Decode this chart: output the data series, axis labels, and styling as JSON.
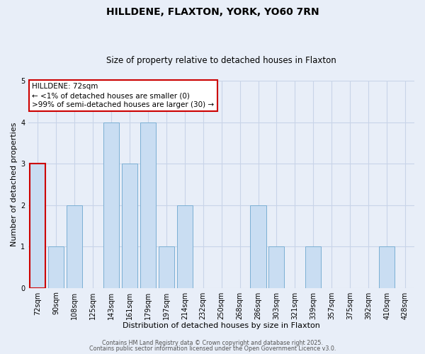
{
  "title": "HILLDENE, FLAXTON, YORK, YO60 7RN",
  "subtitle": "Size of property relative to detached houses in Flaxton",
  "xlabel": "Distribution of detached houses by size in Flaxton",
  "ylabel": "Number of detached properties",
  "categories": [
    "72sqm",
    "90sqm",
    "108sqm",
    "125sqm",
    "143sqm",
    "161sqm",
    "179sqm",
    "197sqm",
    "214sqm",
    "232sqm",
    "250sqm",
    "268sqm",
    "286sqm",
    "303sqm",
    "321sqm",
    "339sqm",
    "357sqm",
    "375sqm",
    "392sqm",
    "410sqm",
    "428sqm"
  ],
  "values": [
    3,
    1,
    2,
    0,
    4,
    3,
    4,
    1,
    2,
    0,
    0,
    0,
    2,
    1,
    0,
    1,
    0,
    0,
    0,
    1,
    0
  ],
  "bar_color": "#c9ddf2",
  "bar_edge_color": "#7bafd4",
  "highlight_bar_index": 0,
  "highlight_bar_edge_color": "#cc0000",
  "annotation_box_text": "HILLDENE: 72sqm\n← <1% of detached houses are smaller (0)\n>99% of semi-detached houses are larger (30) →",
  "annotation_box_edge_color": "#cc0000",
  "annotation_box_facecolor": "#ffffff",
  "ylim": [
    0,
    5
  ],
  "yticks": [
    0,
    1,
    2,
    3,
    4,
    5
  ],
  "grid_color": "#c8d4e8",
  "background_color": "#e8eef8",
  "plot_bg_color": "#e8eef8",
  "footer_line1": "Contains HM Land Registry data © Crown copyright and database right 2025.",
  "footer_line2": "Contains public sector information licensed under the Open Government Licence v3.0.",
  "title_fontsize": 10,
  "subtitle_fontsize": 8.5,
  "xlabel_fontsize": 8,
  "ylabel_fontsize": 8,
  "tick_fontsize": 7,
  "annotation_fontsize": 7.5,
  "footer_fontsize": 5.8
}
